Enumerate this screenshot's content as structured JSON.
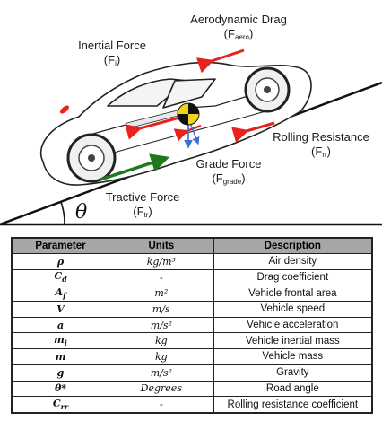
{
  "diagram": {
    "labels": {
      "aero": {
        "name": "Aerodynamic Drag",
        "symbol": "F",
        "sub": "aero"
      },
      "inertial": {
        "name": "Inertial Force",
        "symbol": "F",
        "sub": "i"
      },
      "rolling": {
        "name": "Rolling Resistance",
        "symbol": "F",
        "sub": "rr"
      },
      "grade": {
        "name": "Grade Force",
        "symbol": "F",
        "sub": "grade"
      },
      "tractive": {
        "name": "Tractive Force",
        "symbol": "F",
        "sub": "tr"
      }
    },
    "angle_symbol": "θ",
    "colors": {
      "drag_arrow": "#e8231e",
      "tractive_arrow": "#1f7a1f",
      "gravity_arrow": "#3d6fd1",
      "cg_yellow": "#f2d21b"
    }
  },
  "table": {
    "headers": [
      "Parameter",
      "Units",
      "Description"
    ],
    "rows": [
      {
        "param": "ρ",
        "unit": "kg/m³",
        "desc": "Air density"
      },
      {
        "param": "C_d",
        "unit": "-",
        "desc": "Drag coefficient"
      },
      {
        "param": "A_f",
        "unit": "m²",
        "desc": "Vehicle frontal area"
      },
      {
        "param": "V",
        "unit": "m/s",
        "desc": "Vehicle speed"
      },
      {
        "param": "a",
        "unit": "m/s²",
        "desc": "Vehicle acceleration"
      },
      {
        "param": "m_i",
        "unit": "kg",
        "desc": "Vehicle inertial mass"
      },
      {
        "param": "m",
        "unit": "kg",
        "desc": "Vehicle mass"
      },
      {
        "param": "g",
        "unit": "m/s²",
        "desc": "Gravity"
      },
      {
        "param": "θ*",
        "unit": "Degrees",
        "desc": "Road angle"
      },
      {
        "param": "C_rr",
        "unit": "-",
        "desc": "Rolling resistance coefficient"
      }
    ]
  }
}
